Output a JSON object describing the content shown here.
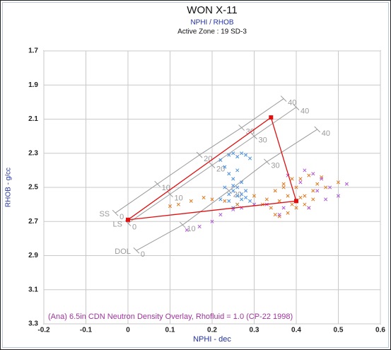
{
  "chart_data": {
    "type": "scatter",
    "title": "WON X-11",
    "subtitle": "NPHI / RHOB",
    "zone": "Active Zone : 19  SD-3",
    "x_label": "NPHI - dec",
    "y_label": "RHOB - g/cc",
    "annotation": "(Ana) 6.5in CDN Neutron Density Overlay, Rhofluid = 1.0 (CP-22 1998)",
    "xlim": [
      -0.2,
      0.6
    ],
    "ylim": [
      1.7,
      3.3
    ],
    "y_reversed": true,
    "xticks": [
      -0.2,
      -0.1,
      0,
      0.1,
      0.2,
      0.3,
      0.4,
      0.5,
      0.6
    ],
    "yticks": [
      1.7,
      1.9,
      2.1,
      2.3,
      2.5,
      2.7,
      2.9,
      3.1,
      3.3
    ],
    "grid": true,
    "grid_color": "#c8c8c8",
    "series": [
      {
        "color": "#4a8fe0",
        "x": [
          0.22,
          0.23,
          0.24,
          0.25,
          0.26,
          0.27,
          0.28,
          0.29,
          0.24,
          0.25,
          0.26,
          0.27,
          0.23,
          0.25,
          0.26,
          0.28,
          0.24,
          0.26,
          0.27,
          0.25,
          0.22,
          0.29,
          0.3,
          0.26,
          0.25,
          0.27,
          0.28,
          0.24
        ],
        "y": [
          2.34,
          2.38,
          2.31,
          2.3,
          2.32,
          2.3,
          2.31,
          2.33,
          2.42,
          2.45,
          2.4,
          2.47,
          2.5,
          2.52,
          2.55,
          2.56,
          2.58,
          2.5,
          2.54,
          2.49,
          2.57,
          2.58,
          2.6,
          2.6,
          2.62,
          2.57,
          2.52,
          2.54
        ]
      },
      {
        "color": "#e07b20",
        "x": [
          0.1,
          0.12,
          0.15,
          0.18,
          0.2,
          0.23,
          0.26,
          0.3,
          0.32,
          0.34,
          0.35,
          0.36,
          0.37,
          0.38,
          0.39,
          0.4,
          0.41,
          0.42,
          0.43,
          0.44,
          0.45,
          0.46,
          0.38,
          0.36,
          0.4,
          0.42,
          0.44,
          0.35,
          0.37,
          0.41,
          0.33,
          0.47,
          0.5,
          0.39,
          0.43
        ],
        "y": [
          2.61,
          2.6,
          2.58,
          2.56,
          2.57,
          2.58,
          2.6,
          2.55,
          2.6,
          2.62,
          2.52,
          2.58,
          2.48,
          2.55,
          2.6,
          2.5,
          2.45,
          2.55,
          2.43,
          2.52,
          2.48,
          2.44,
          2.65,
          2.67,
          2.62,
          2.6,
          2.57,
          2.66,
          2.5,
          2.56,
          2.57,
          2.5,
          2.47,
          2.45,
          2.62
        ]
      },
      {
        "color": "#b05ad8",
        "x": [
          0.14,
          0.17,
          0.2,
          0.22,
          0.25,
          0.27,
          0.3,
          0.33,
          0.37,
          0.4,
          0.42,
          0.44,
          0.46,
          0.48,
          0.5,
          0.38,
          0.45,
          0.43,
          0.36,
          0.41,
          0.47,
          0.52
        ],
        "y": [
          2.75,
          2.73,
          2.7,
          2.66,
          2.63,
          2.62,
          2.6,
          2.6,
          2.62,
          2.58,
          2.4,
          2.42,
          2.45,
          2.5,
          2.55,
          2.43,
          2.52,
          2.62,
          2.66,
          2.47,
          2.57,
          2.48
        ]
      }
    ],
    "lithology_color": "#9a9a9a",
    "lithology": [
      {
        "name": "SS",
        "x": [
          -0.03,
          0.07,
          0.17,
          0.27,
          0.37
        ],
        "y": [
          2.65,
          2.48,
          2.31,
          2.15,
          1.98
        ],
        "labels": [
          0,
          10,
          20,
          30,
          40
        ]
      },
      {
        "name": "LS",
        "x": [
          0,
          0.1,
          0.2,
          0.3,
          0.4
        ],
        "y": [
          2.71,
          2.54,
          2.37,
          2.2,
          2.03
        ],
        "labels": [
          0,
          10,
          20,
          30,
          40
        ]
      },
      {
        "name": "DOL",
        "x": [
          0.02,
          0.13,
          0.24,
          0.33,
          0.45
        ],
        "y": [
          2.87,
          2.72,
          2.52,
          2.35,
          2.16
        ],
        "labels": [
          0,
          10,
          20,
          30,
          40
        ]
      }
    ],
    "polygon": {
      "color": "#e01010",
      "x": [
        0,
        0.34,
        0.4
      ],
      "y": [
        2.69,
        2.09,
        2.58
      ]
    }
  }
}
